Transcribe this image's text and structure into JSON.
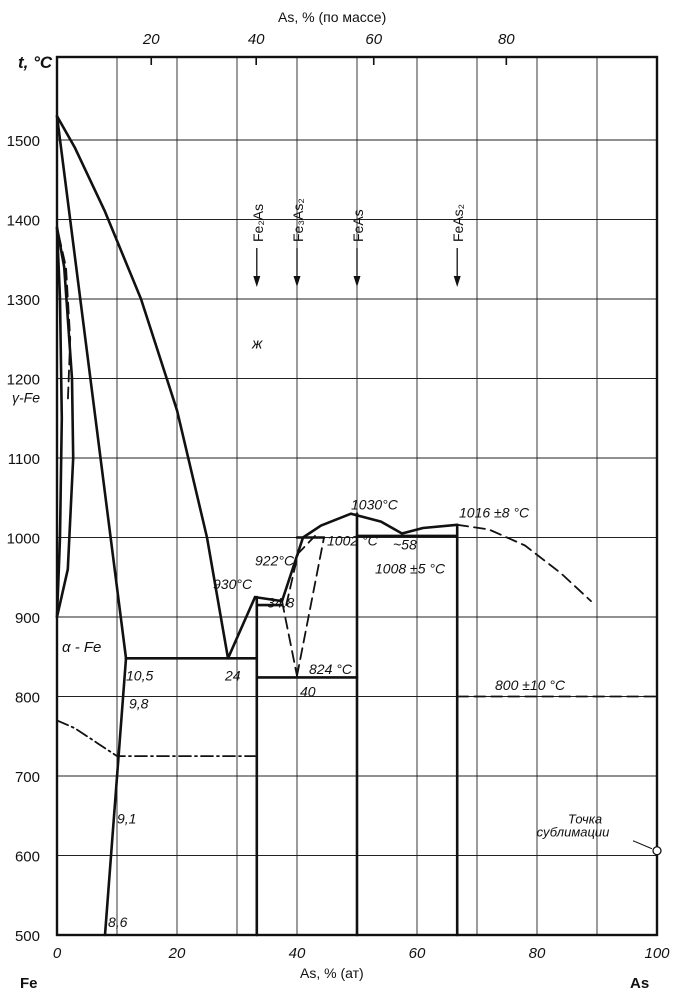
{
  "chart_data": {
    "type": "line",
    "title": "",
    "xlabel": "As, % (ат)",
    "ylabel": "t, °C",
    "x2label": "As, % (по массе)",
    "xlim": [
      0,
      100
    ],
    "ylim": [
      500,
      1600
    ],
    "x_ticks": [
      "0",
      "20",
      "40",
      "60",
      "80",
      "100"
    ],
    "x2_ticks": [
      "20",
      "40",
      "60",
      "80"
    ],
    "y_ticks": [
      "500",
      "600",
      "700",
      "800",
      "900",
      "1000",
      "1100",
      "1200",
      "1300",
      "1400",
      "1500"
    ],
    "grid": true,
    "left_element": "Fe",
    "right_element": "As",
    "phase_labels": [
      "ж",
      "γ-Fe",
      "α - Fe"
    ],
    "compounds": [
      {
        "label": "Fe₂As",
        "x": 33.3
      },
      {
        "label": "Fe₃As₂",
        "x": 40
      },
      {
        "label": "FeAs",
        "x": 50
      },
      {
        "label": "FeAs₂",
        "x": 66.7
      }
    ],
    "annotations": [
      {
        "text": "1030°C",
        "x": 49,
        "y": 1035
      },
      {
        "text": "1016 ±8 °C",
        "x": 67,
        "y": 1025
      },
      {
        "text": "922°C",
        "x": 33,
        "y": 965
      },
      {
        "text": "930°C",
        "x": 26,
        "y": 935
      },
      {
        "text": "1002 °C",
        "x": 45,
        "y": 990
      },
      {
        "text": "~58",
        "x": 56,
        "y": 985
      },
      {
        "text": "1008 ±5 °C",
        "x": 53,
        "y": 955
      },
      {
        "text": "34,8",
        "x": 35,
        "y": 912
      },
      {
        "text": "824 °C",
        "x": 42,
        "y": 828
      },
      {
        "text": "800 ±10 °C",
        "x": 73,
        "y": 808
      },
      {
        "text": "10,5",
        "x": 11.5,
        "y": 820
      },
      {
        "text": "24",
        "x": 28,
        "y": 820
      },
      {
        "text": "40",
        "x": 40.5,
        "y": 800
      },
      {
        "text": "9,8",
        "x": 12,
        "y": 785
      },
      {
        "text": "9,1",
        "x": 10,
        "y": 640
      },
      {
        "text": "8,6",
        "x": 8.5,
        "y": 510
      }
    ],
    "sublimation_label": [
      "Точка",
      "сублимации"
    ],
    "series": [
      {
        "style": "solid",
        "points": [
          [
            0,
            1530
          ],
          [
            3,
            1490
          ],
          [
            8,
            1410
          ],
          [
            14,
            1300
          ],
          [
            20,
            1160
          ],
          [
            25,
            1000
          ],
          [
            28.5,
            848
          ]
        ]
      },
      {
        "style": "solid",
        "points": [
          [
            0,
            1530
          ],
          [
            11.5,
            848
          ]
        ]
      },
      {
        "style": "solid",
        "points": [
          [
            8,
            500
          ],
          [
            11.5,
            848
          ]
        ]
      },
      {
        "style": "solid",
        "points": [
          [
            0,
            1390
          ],
          [
            1.2,
            1340
          ],
          [
            2.5,
            1200
          ],
          [
            2.7,
            1100
          ],
          [
            1.8,
            960
          ],
          [
            0,
            900
          ]
        ]
      },
      {
        "style": "solid",
        "points": [
          [
            0,
            1390
          ],
          [
            0.5,
            1300
          ],
          [
            0.8,
            1150
          ],
          [
            0.5,
            1000
          ],
          [
            0,
            900
          ]
        ]
      },
      {
        "style": "dashed",
        "points": [
          [
            0.3,
            1380
          ],
          [
            1.5,
            1340
          ],
          [
            2.2,
            1250
          ],
          [
            1.8,
            1170
          ]
        ]
      },
      {
        "style": "dash-dot",
        "points": [
          [
            0,
            770
          ],
          [
            3,
            760
          ],
          [
            7,
            740
          ],
          [
            10,
            725
          ],
          [
            33,
            725
          ]
        ]
      },
      {
        "style": "solid",
        "points": [
          [
            11.5,
            848
          ],
          [
            33.3,
            848
          ]
        ]
      },
      {
        "style": "solid",
        "points": [
          [
            28.5,
            848
          ],
          [
            33,
            925
          ]
        ]
      },
      {
        "style": "solid",
        "points": [
          [
            33,
            925
          ],
          [
            37.5,
            920
          ]
        ]
      },
      {
        "style": "solid",
        "points": [
          [
            33.3,
            915
          ],
          [
            37.5,
            915
          ]
        ]
      },
      {
        "style": "solid",
        "points": [
          [
            33.3,
            824
          ],
          [
            50,
            824
          ]
        ]
      },
      {
        "style": "solid",
        "points": [
          [
            37.5,
            920
          ],
          [
            41,
            1000
          ],
          [
            44,
            1015
          ],
          [
            49,
            1030
          ],
          [
            54,
            1020
          ],
          [
            57.5,
            1005
          ]
        ]
      },
      {
        "style": "solid",
        "points": [
          [
            40,
            1000
          ],
          [
            44.5,
            1000
          ]
        ]
      },
      {
        "style": "solid",
        "points": [
          [
            57.5,
            1005
          ],
          [
            61,
            1012
          ],
          [
            66.7,
            1016
          ]
        ]
      },
      {
        "style": "solid",
        "points": [
          [
            50,
            1002
          ],
          [
            66.7,
            1002
          ]
        ]
      },
      {
        "style": "dashed",
        "points": [
          [
            37.5,
            920
          ],
          [
            40,
            826
          ]
        ]
      },
      {
        "style": "dashed",
        "points": [
          [
            40,
            826
          ],
          [
            44.5,
            1000
          ]
        ]
      },
      {
        "style": "dashed",
        "points": [
          [
            38.2,
            915
          ],
          [
            40.2,
            980
          ],
          [
            43,
            1002
          ]
        ]
      },
      {
        "style": "dashed",
        "points": [
          [
            66.7,
            1016
          ],
          [
            72,
            1010
          ],
          [
            78,
            990
          ],
          [
            84,
            955
          ],
          [
            89,
            920
          ]
        ]
      },
      {
        "style": "dashed",
        "points": [
          [
            66.7,
            800
          ],
          [
            100,
            800
          ]
        ]
      },
      {
        "style": "solid",
        "points": [
          [
            33.3,
            500
          ],
          [
            33.3,
            925
          ]
        ]
      },
      {
        "style": "solid",
        "points": [
          [
            50,
            500
          ],
          [
            50,
            1030
          ]
        ]
      },
      {
        "style": "solid",
        "points": [
          [
            66.7,
            500
          ],
          [
            66.7,
            1016
          ]
        ]
      }
    ]
  }
}
